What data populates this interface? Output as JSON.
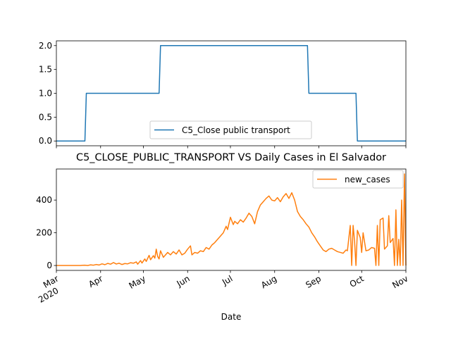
{
  "chart_data": [
    {
      "type": "line",
      "title": "",
      "xlabel": "",
      "ylabel": "",
      "xlim": [
        "2020-03-01",
        "2020-11-01"
      ],
      "ylim": [
        -0.1,
        2.1
      ],
      "yticks": [
        "0.0",
        "0.5",
        "1.0",
        "1.5",
        "2.0"
      ],
      "legend": "lower-center",
      "grid": false,
      "series": [
        {
          "name": "C5_Close public transport",
          "color": "#1f77b4",
          "points": [
            {
              "x": "2020-03-01",
              "y": 0
            },
            {
              "x": "2020-03-21",
              "y": 0
            },
            {
              "x": "2020-03-22",
              "y": 1
            },
            {
              "x": "2020-05-12",
              "y": 1
            },
            {
              "x": "2020-05-13",
              "y": 2
            },
            {
              "x": "2020-08-24",
              "y": 2
            },
            {
              "x": "2020-08-25",
              "y": 1
            },
            {
              "x": "2020-09-27",
              "y": 1
            },
            {
              "x": "2020-09-28",
              "y": 0
            },
            {
              "x": "2020-11-01",
              "y": 0
            }
          ]
        }
      ]
    },
    {
      "type": "line",
      "title": "C5_CLOSE_PUBLIC_TRANSPORT VS Daily Cases in El Salvador",
      "xlabel": "Date",
      "ylabel": "",
      "xlim": [
        "2020-03-01",
        "2020-11-01"
      ],
      "ylim": [
        -30,
        590
      ],
      "yticks": [
        "0",
        "200",
        "400"
      ],
      "xticks": [
        {
          "date": "2020-03-01",
          "label": "Mar",
          "sublabel": "2020"
        },
        {
          "date": "2020-04-01",
          "label": "Apr"
        },
        {
          "date": "2020-05-01",
          "label": "May"
        },
        {
          "date": "2020-06-01",
          "label": "Jun"
        },
        {
          "date": "2020-07-01",
          "label": "Jul"
        },
        {
          "date": "2020-08-01",
          "label": "Aug"
        },
        {
          "date": "2020-09-01",
          "label": "Sep"
        },
        {
          "date": "2020-10-01",
          "label": "Oct"
        },
        {
          "date": "2020-11-01",
          "label": "Nov"
        }
      ],
      "legend": "upper-right",
      "grid": false,
      "series": [
        {
          "name": "new_cases",
          "color": "#ff7f0e",
          "points": [
            {
              "x": "2020-03-01",
              "y": 0
            },
            {
              "x": "2020-03-18",
              "y": 0
            },
            {
              "x": "2020-03-19",
              "y": 1
            },
            {
              "x": "2020-03-21",
              "y": 2
            },
            {
              "x": "2020-03-23",
              "y": 0
            },
            {
              "x": "2020-03-25",
              "y": 4
            },
            {
              "x": "2020-03-27",
              "y": 2
            },
            {
              "x": "2020-03-29",
              "y": 6
            },
            {
              "x": "2020-03-31",
              "y": 3
            },
            {
              "x": "2020-04-02",
              "y": 10
            },
            {
              "x": "2020-04-04",
              "y": 5
            },
            {
              "x": "2020-04-06",
              "y": 13
            },
            {
              "x": "2020-04-08",
              "y": 8
            },
            {
              "x": "2020-04-10",
              "y": 18
            },
            {
              "x": "2020-04-12",
              "y": 9
            },
            {
              "x": "2020-04-14",
              "y": 14
            },
            {
              "x": "2020-04-16",
              "y": 6
            },
            {
              "x": "2020-04-18",
              "y": 12
            },
            {
              "x": "2020-04-20",
              "y": 10
            },
            {
              "x": "2020-04-22",
              "y": 17
            },
            {
              "x": "2020-04-24",
              "y": 14
            },
            {
              "x": "2020-04-26",
              "y": 22
            },
            {
              "x": "2020-04-27",
              "y": 8
            },
            {
              "x": "2020-04-29",
              "y": 30
            },
            {
              "x": "2020-04-30",
              "y": 15
            },
            {
              "x": "2020-05-02",
              "y": 40
            },
            {
              "x": "2020-05-03",
              "y": 25
            },
            {
              "x": "2020-05-05",
              "y": 62
            },
            {
              "x": "2020-05-06",
              "y": 35
            },
            {
              "x": "2020-05-08",
              "y": 60
            },
            {
              "x": "2020-05-09",
              "y": 45
            },
            {
              "x": "2020-05-10",
              "y": 100
            },
            {
              "x": "2020-05-11",
              "y": 55
            },
            {
              "x": "2020-05-12",
              "y": 40
            },
            {
              "x": "2020-05-13",
              "y": 90
            },
            {
              "x": "2020-05-15",
              "y": 50
            },
            {
              "x": "2020-05-16",
              "y": 60
            },
            {
              "x": "2020-05-18",
              "y": 80
            },
            {
              "x": "2020-05-20",
              "y": 65
            },
            {
              "x": "2020-05-22",
              "y": 85
            },
            {
              "x": "2020-05-24",
              "y": 70
            },
            {
              "x": "2020-05-26",
              "y": 95
            },
            {
              "x": "2020-05-28",
              "y": 65
            },
            {
              "x": "2020-05-30",
              "y": 75
            },
            {
              "x": "2020-06-01",
              "y": 100
            },
            {
              "x": "2020-06-03",
              "y": 120
            },
            {
              "x": "2020-06-04",
              "y": 65
            },
            {
              "x": "2020-06-06",
              "y": 80
            },
            {
              "x": "2020-06-08",
              "y": 75
            },
            {
              "x": "2020-06-10",
              "y": 90
            },
            {
              "x": "2020-06-12",
              "y": 85
            },
            {
              "x": "2020-06-14",
              "y": 110
            },
            {
              "x": "2020-06-16",
              "y": 100
            },
            {
              "x": "2020-06-18",
              "y": 125
            },
            {
              "x": "2020-06-20",
              "y": 140
            },
            {
              "x": "2020-06-22",
              "y": 160
            },
            {
              "x": "2020-06-24",
              "y": 180
            },
            {
              "x": "2020-06-26",
              "y": 200
            },
            {
              "x": "2020-06-28",
              "y": 240
            },
            {
              "x": "2020-06-29",
              "y": 220
            },
            {
              "x": "2020-07-01",
              "y": 295
            },
            {
              "x": "2020-07-03",
              "y": 250
            },
            {
              "x": "2020-07-04",
              "y": 270
            },
            {
              "x": "2020-07-06",
              "y": 255
            },
            {
              "x": "2020-07-08",
              "y": 280
            },
            {
              "x": "2020-07-10",
              "y": 265
            },
            {
              "x": "2020-07-12",
              "y": 290
            },
            {
              "x": "2020-07-14",
              "y": 320
            },
            {
              "x": "2020-07-16",
              "y": 300
            },
            {
              "x": "2020-07-18",
              "y": 255
            },
            {
              "x": "2020-07-20",
              "y": 330
            },
            {
              "x": "2020-07-22",
              "y": 370
            },
            {
              "x": "2020-07-24",
              "y": 390
            },
            {
              "x": "2020-07-26",
              "y": 410
            },
            {
              "x": "2020-07-28",
              "y": 425
            },
            {
              "x": "2020-07-30",
              "y": 400
            },
            {
              "x": "2020-08-01",
              "y": 395
            },
            {
              "x": "2020-08-03",
              "y": 415
            },
            {
              "x": "2020-08-05",
              "y": 390
            },
            {
              "x": "2020-08-07",
              "y": 420
            },
            {
              "x": "2020-08-09",
              "y": 440
            },
            {
              "x": "2020-08-11",
              "y": 410
            },
            {
              "x": "2020-08-13",
              "y": 445
            },
            {
              "x": "2020-08-15",
              "y": 400
            },
            {
              "x": "2020-08-17",
              "y": 330
            },
            {
              "x": "2020-08-19",
              "y": 300
            },
            {
              "x": "2020-08-21",
              "y": 280
            },
            {
              "x": "2020-08-23",
              "y": 255
            },
            {
              "x": "2020-08-25",
              "y": 235
            },
            {
              "x": "2020-08-27",
              "y": 200
            },
            {
              "x": "2020-08-29",
              "y": 175
            },
            {
              "x": "2020-08-31",
              "y": 145
            },
            {
              "x": "2020-09-02",
              "y": 120
            },
            {
              "x": "2020-09-04",
              "y": 95
            },
            {
              "x": "2020-09-06",
              "y": 85
            },
            {
              "x": "2020-09-08",
              "y": 100
            },
            {
              "x": "2020-09-10",
              "y": 105
            },
            {
              "x": "2020-09-12",
              "y": 95
            },
            {
              "x": "2020-09-14",
              "y": 85
            },
            {
              "x": "2020-09-16",
              "y": 80
            },
            {
              "x": "2020-09-18",
              "y": 75
            },
            {
              "x": "2020-09-20",
              "y": 95
            },
            {
              "x": "2020-09-21",
              "y": 90
            },
            {
              "x": "2020-09-23",
              "y": 245
            },
            {
              "x": "2020-09-24",
              "y": 0
            },
            {
              "x": "2020-09-25",
              "y": 245
            },
            {
              "x": "2020-09-26",
              "y": 150
            },
            {
              "x": "2020-09-27",
              "y": 0
            },
            {
              "x": "2020-09-28",
              "y": 215
            },
            {
              "x": "2020-09-30",
              "y": 170
            },
            {
              "x": "2020-10-01",
              "y": 80
            },
            {
              "x": "2020-10-02",
              "y": 200
            },
            {
              "x": "2020-10-04",
              "y": 90
            },
            {
              "x": "2020-10-06",
              "y": 95
            },
            {
              "x": "2020-10-08",
              "y": 110
            },
            {
              "x": "2020-10-10",
              "y": 105
            },
            {
              "x": "2020-10-11",
              "y": 0
            },
            {
              "x": "2020-10-12",
              "y": 245
            },
            {
              "x": "2020-10-13",
              "y": 0
            },
            {
              "x": "2020-10-14",
              "y": 280
            },
            {
              "x": "2020-10-16",
              "y": 290
            },
            {
              "x": "2020-10-17",
              "y": 100
            },
            {
              "x": "2020-10-19",
              "y": 120
            },
            {
              "x": "2020-10-20",
              "y": 305
            },
            {
              "x": "2020-10-21",
              "y": 140
            },
            {
              "x": "2020-10-23",
              "y": 165
            },
            {
              "x": "2020-10-24",
              "y": 0
            },
            {
              "x": "2020-10-25",
              "y": 340
            },
            {
              "x": "2020-10-26",
              "y": 0
            },
            {
              "x": "2020-10-27",
              "y": 160
            },
            {
              "x": "2020-10-28",
              "y": 0
            },
            {
              "x": "2020-10-29",
              "y": 400
            },
            {
              "x": "2020-10-30",
              "y": 0
            },
            {
              "x": "2020-10-31",
              "y": 560
            },
            {
              "x": "2020-11-01",
              "y": 0
            }
          ]
        }
      ]
    }
  ]
}
